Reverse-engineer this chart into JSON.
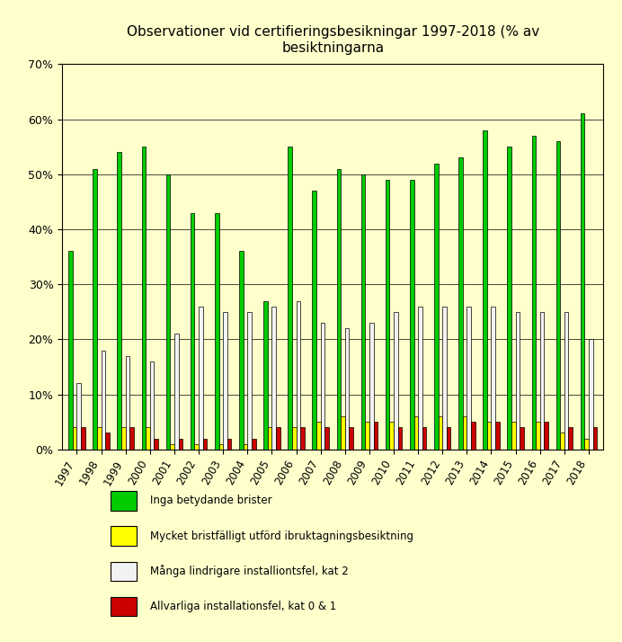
{
  "title": "Observationer vid certifieringsbesikningar 1997-2018 (% av\nbesiktningarna",
  "years": [
    "1997",
    "1998",
    "1999",
    "2000",
    "2001",
    "2002",
    "2003",
    "2004",
    "2005",
    "2006",
    "2007",
    "2008",
    "2009",
    "2010",
    "2011",
    "2012",
    "2013",
    "2014",
    "2015",
    "2016",
    "2017",
    "2018"
  ],
  "green": [
    36,
    51,
    54,
    55,
    50,
    43,
    43,
    36,
    27,
    55,
    47,
    51,
    50,
    49,
    49,
    52,
    53,
    58,
    55,
    57,
    56,
    61
  ],
  "yellow": [
    4,
    4,
    4,
    4,
    1,
    1,
    1,
    1,
    4,
    4,
    5,
    6,
    5,
    5,
    6,
    6,
    6,
    5,
    5,
    5,
    3,
    2
  ],
  "white": [
    12,
    18,
    17,
    16,
    21,
    26,
    25,
    25,
    26,
    27,
    23,
    22,
    23,
    25,
    26,
    26,
    26,
    26,
    25,
    25,
    25,
    20
  ],
  "red": [
    4,
    3,
    4,
    2,
    2,
    2,
    2,
    2,
    4,
    4,
    4,
    4,
    5,
    4,
    4,
    4,
    5,
    5,
    4,
    5,
    4,
    4
  ],
  "color_green": "#00cc00",
  "color_yellow": "#ffff00",
  "color_white": "#f2f2f2",
  "color_red": "#cc0000",
  "bg_color": "#ffffcc",
  "legend_bg": "#c0c0c0",
  "legend_labels": [
    "Inga betydande brister",
    "Mycket bristfälligt utförd ibruktagningsbesiktning",
    "Många lindrigare installiontsfel, kat 2",
    "Allvarliga installationsfel, kat 0 & 1"
  ],
  "ylim": [
    0,
    0.7
  ],
  "yticks": [
    0.0,
    0.1,
    0.2,
    0.3,
    0.4,
    0.5,
    0.6,
    0.7
  ],
  "ytick_labels": [
    "0%",
    "10%",
    "20%",
    "30%",
    "40%",
    "50%",
    "60%",
    "70%"
  ]
}
